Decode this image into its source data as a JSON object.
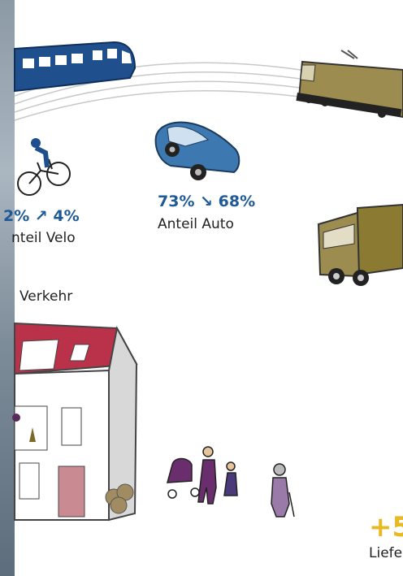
{
  "labels": {
    "velo_change": "2% ↗ 4%",
    "velo_label": "nteil Velo",
    "auto_change": "73% ↘ 68%",
    "auto_label": "Anteil Auto",
    "traffic": "Verkehr",
    "delivery_change": "+5",
    "delivery_label": "Liefe"
  }
}
